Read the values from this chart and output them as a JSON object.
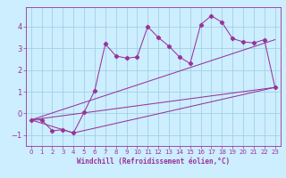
{
  "xlabel": "Windchill (Refroidissement éolien,°C)",
  "bg_color": "#cceeff",
  "grid_color": "#99ccdd",
  "line_color": "#993399",
  "xlim": [
    -0.5,
    23.5
  ],
  "ylim": [
    -1.5,
    4.9
  ],
  "xticks": [
    0,
    1,
    2,
    3,
    4,
    5,
    6,
    7,
    8,
    9,
    10,
    11,
    12,
    13,
    14,
    15,
    16,
    17,
    18,
    19,
    20,
    21,
    22,
    23
  ],
  "yticks": [
    -1,
    0,
    1,
    2,
    3,
    4
  ],
  "main_x": [
    0,
    1,
    2,
    3,
    4,
    5,
    6,
    7,
    8,
    9,
    10,
    11,
    12,
    13,
    14,
    15,
    16,
    17,
    18,
    19,
    20,
    21,
    22,
    23
  ],
  "main_y": [
    -0.3,
    -0.3,
    -0.8,
    -0.75,
    -0.9,
    0.05,
    1.05,
    3.2,
    2.65,
    2.55,
    2.6,
    4.0,
    3.5,
    3.1,
    2.6,
    2.3,
    4.1,
    4.5,
    4.2,
    3.45,
    3.3,
    3.25,
    3.4,
    1.2
  ],
  "line1_x": [
    0,
    23
  ],
  "line1_y": [
    -0.3,
    1.2
  ],
  "line2_x": [
    0,
    4,
    23
  ],
  "line2_y": [
    -0.3,
    -0.9,
    1.2
  ],
  "line3_x": [
    0,
    23
  ],
  "line3_y": [
    -0.3,
    3.4
  ],
  "tick_fontsize": 5,
  "xlabel_fontsize": 5,
  "linewidth": 0.75,
  "markersize": 2.2
}
